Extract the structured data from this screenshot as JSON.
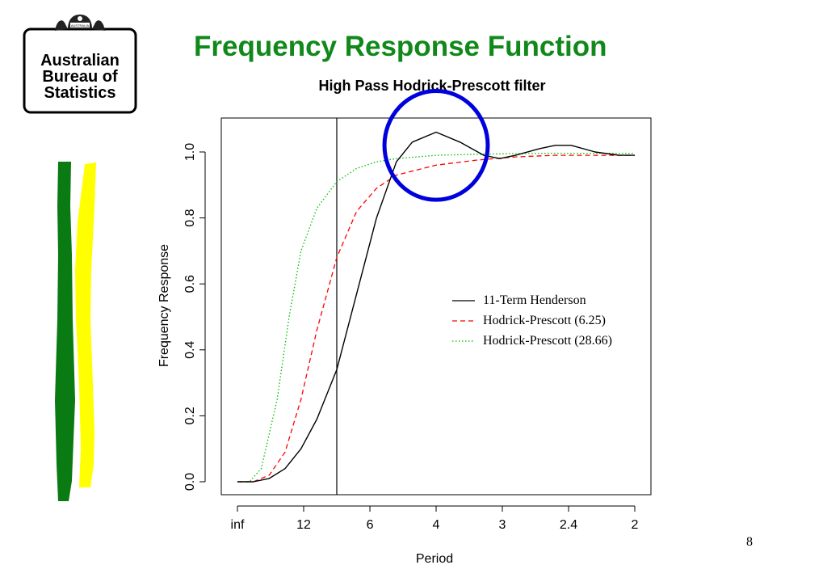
{
  "slide": {
    "title": "Frequency Response Function",
    "page_number": "8",
    "title_color": "#11891a"
  },
  "logo": {
    "line1": "Australian",
    "line2": "Bureau of",
    "line3": "Statistics",
    "crest_text": "AUSTRALIA"
  },
  "decoration": {
    "left_stripe_color": "#0a7a12",
    "right_stripe_color": "#ffff00"
  },
  "chart_data": {
    "type": "line",
    "title": "High Pass Hodrick-Prescott filter",
    "xlabel": "Period",
    "ylabel": "Frequency Response",
    "x_tick_labels": [
      "inf",
      "12",
      "6",
      "4",
      "3",
      "2.4",
      "2"
    ],
    "x_tick_frequencies": [
      0,
      0.0833,
      0.1667,
      0.25,
      0.3333,
      0.4167,
      0.5
    ],
    "xlim": [
      0,
      0.5
    ],
    "ylim": [
      0,
      1.0
    ],
    "y_ticks": [
      "0.0",
      "0.2",
      "0.4",
      "0.6",
      "0.8",
      "1.0"
    ],
    "y_tick_values": [
      0,
      0.2,
      0.4,
      0.6,
      0.8,
      1.0
    ],
    "vertical_line_x": 0.125,
    "grid": false,
    "legend_position": "right-middle",
    "series": [
      {
        "name": "11-Term Henderson",
        "style": "solid",
        "color": "#000000",
        "x": [
          0,
          0.02,
          0.04,
          0.06,
          0.08,
          0.1,
          0.125,
          0.15,
          0.175,
          0.2,
          0.22,
          0.25,
          0.28,
          0.31,
          0.33,
          0.35,
          0.38,
          0.4,
          0.42,
          0.45,
          0.48,
          0.5
        ],
        "values": [
          0,
          0.0,
          0.01,
          0.04,
          0.1,
          0.19,
          0.34,
          0.57,
          0.8,
          0.97,
          1.03,
          1.06,
          1.03,
          0.99,
          0.98,
          0.99,
          1.01,
          1.02,
          1.02,
          1.0,
          0.99,
          0.99
        ]
      },
      {
        "name": "Hodrick-Prescott (6.25)",
        "style": "dashed",
        "color": "#ff0000",
        "x": [
          0,
          0.02,
          0.04,
          0.06,
          0.08,
          0.1,
          0.125,
          0.15,
          0.175,
          0.2,
          0.25,
          0.3,
          0.35,
          0.4,
          0.45,
          0.5
        ],
        "values": [
          0,
          0.0,
          0.02,
          0.09,
          0.25,
          0.46,
          0.68,
          0.82,
          0.89,
          0.93,
          0.96,
          0.975,
          0.985,
          0.99,
          0.99,
          0.99
        ]
      },
      {
        "name": "Hodrick-Prescott (28.66)",
        "style": "dotted",
        "color": "#00bb00",
        "x": [
          0,
          0.015,
          0.03,
          0.05,
          0.065,
          0.08,
          0.1,
          0.125,
          0.15,
          0.175,
          0.2,
          0.25,
          0.3,
          0.35,
          0.4,
          0.45,
          0.5
        ],
        "values": [
          0,
          0.0,
          0.04,
          0.25,
          0.5,
          0.7,
          0.83,
          0.91,
          0.95,
          0.97,
          0.98,
          0.99,
          0.993,
          0.995,
          0.996,
          0.996,
          0.996
        ]
      }
    ],
    "annotation": {
      "shape": "ellipse",
      "color": "#0000dd",
      "center_x": 0.25,
      "center_y": 1.02,
      "rx": 0.065,
      "ry": 0.165
    }
  }
}
